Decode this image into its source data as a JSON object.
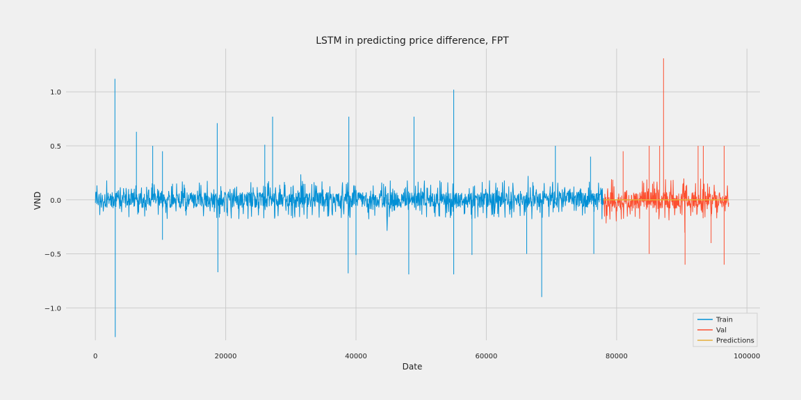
{
  "chart_data": {
    "type": "line",
    "title": "LSTM in predicting price difference, FPT",
    "xlabel": "Date",
    "ylabel": "VND",
    "xlim": [
      -4500,
      102000
    ],
    "ylim": [
      -1.3,
      1.4
    ],
    "xticks": [
      0,
      20000,
      40000,
      60000,
      80000,
      100000
    ],
    "xtick_labels": [
      "0",
      "20000",
      "40000",
      "60000",
      "80000",
      "100000"
    ],
    "yticks": [
      -1.0,
      -0.5,
      0.0,
      0.5,
      1.0
    ],
    "ytick_labels": [
      "−1.0",
      "−0.5",
      "0.0",
      "0.5",
      "1.0"
    ],
    "grid": true,
    "legend_position": "bottom-right",
    "series": [
      {
        "name": "Train",
        "color": "#008fd5",
        "x_range": [
          0,
          78000
        ],
        "typical_band": [
          -0.18,
          0.18
        ],
        "spikes": [
          {
            "x": 3000,
            "y": 1.12
          },
          {
            "x": 3050,
            "y": -1.27
          },
          {
            "x": 6300,
            "y": 0.63
          },
          {
            "x": 8800,
            "y": 0.5
          },
          {
            "x": 10300,
            "y": 0.45
          },
          {
            "x": 10300,
            "y": -0.37
          },
          {
            "x": 18700,
            "y": 0.71
          },
          {
            "x": 18800,
            "y": -0.67
          },
          {
            "x": 26000,
            "y": 0.51
          },
          {
            "x": 27200,
            "y": 0.77
          },
          {
            "x": 38900,
            "y": 0.77
          },
          {
            "x": 38800,
            "y": -0.68
          },
          {
            "x": 40000,
            "y": -0.51
          },
          {
            "x": 48100,
            "y": -0.69
          },
          {
            "x": 48900,
            "y": 0.77
          },
          {
            "x": 55000,
            "y": 1.02
          },
          {
            "x": 55000,
            "y": -0.69
          },
          {
            "x": 57800,
            "y": -0.51
          },
          {
            "x": 66200,
            "y": -0.5
          },
          {
            "x": 68500,
            "y": -0.9
          },
          {
            "x": 70600,
            "y": 0.5
          },
          {
            "x": 76000,
            "y": 0.4
          },
          {
            "x": 76500,
            "y": -0.5
          }
        ]
      },
      {
        "name": "Val",
        "color": "#fc4f30",
        "x_range": [
          78000,
          97200
        ],
        "typical_band": [
          -0.2,
          0.2
        ],
        "spikes": [
          {
            "x": 81000,
            "y": 0.45
          },
          {
            "x": 85000,
            "y": 0.5
          },
          {
            "x": 85000,
            "y": -0.5
          },
          {
            "x": 86600,
            "y": 0.5
          },
          {
            "x": 87200,
            "y": 1.31
          },
          {
            "x": 90500,
            "y": -0.6
          },
          {
            "x": 92500,
            "y": 0.5
          },
          {
            "x": 93300,
            "y": 0.5
          },
          {
            "x": 96500,
            "y": 0.5
          },
          {
            "x": 96500,
            "y": -0.6
          },
          {
            "x": 94500,
            "y": -0.4
          }
        ]
      },
      {
        "name": "Predictions",
        "color": "#e5ae38",
        "x_range": [
          78000,
          97200
        ],
        "values": [
          0.0,
          0.0
        ]
      }
    ]
  }
}
